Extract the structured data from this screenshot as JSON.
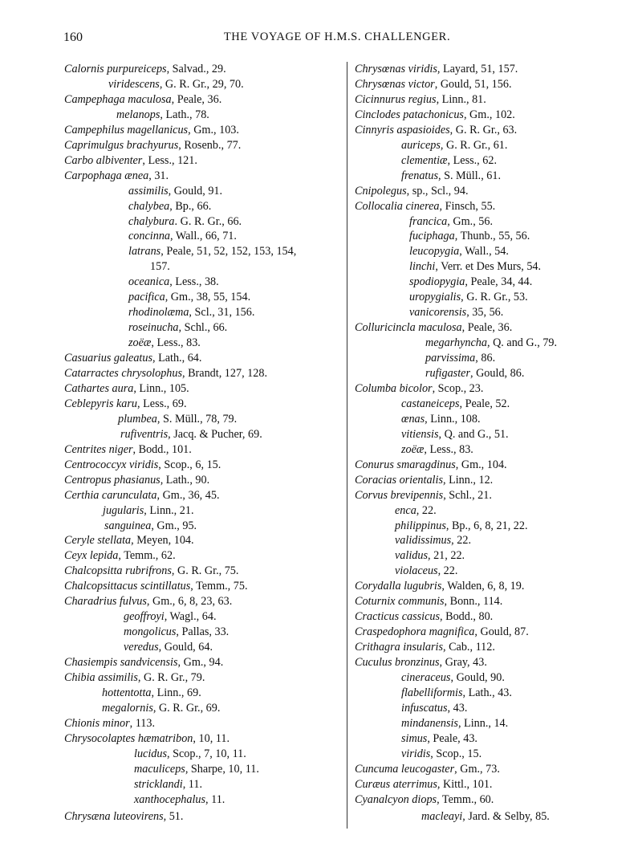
{
  "header": {
    "page_number": "160",
    "running_title": "THE VOYAGE OF H.M.S. CHALLENGER."
  },
  "left_column": [
    {
      "name": "Calornis purpureiceps",
      "ref": ", Salvad., 29."
    },
    {
      "name": "viridescens",
      "ref": ", G. R. Gr., 29, 70."
    },
    {
      "name": "Campephaga maculosa",
      "ref": ", Peale, 36."
    },
    {
      "name": "melanops",
      "ref": ", Lath., 78."
    },
    {
      "name": "Campephilus magellanicus",
      "ref": ", Gm., 103."
    },
    {
      "name": "Caprimulgus brachyurus",
      "ref": ", Rosenb., 77."
    },
    {
      "name": "Carbo albiventer",
      "ref": ", Less., 121."
    },
    {
      "name": "Carpophaga ænea",
      "ref": ", 31."
    },
    {
      "name": "assimilis",
      "ref": ", Gould, 91."
    },
    {
      "name": "chalybea",
      "ref": ", Bp., 66."
    },
    {
      "name": "chalybura",
      "ref": ". G. R. Gr., 66."
    },
    {
      "name": "concinna",
      "ref": ", Wall., 66, 71."
    },
    {
      "name": "latrans",
      "ref": ", Peale, 51, 52, 152, 153, 154,"
    },
    {
      "name": "",
      "ref": "157."
    },
    {
      "name": "oceanica",
      "ref": ", Less., 38."
    },
    {
      "name": "pacifica",
      "ref": ", Gm., 38, 55, 154."
    },
    {
      "name": "rhodinolæma",
      "ref": ", Scl., 31, 156."
    },
    {
      "name": "roseinucha",
      "ref": ", Schl., 66."
    },
    {
      "name": "zoëæ",
      "ref": ", Less., 83."
    },
    {
      "name": "Casuarius galeatus",
      "ref": ", Lath., 64."
    },
    {
      "name": "Catarractes chrysolophus",
      "ref": ", Brandt, 127, 128."
    },
    {
      "name": "Cathartes aura",
      "ref": ", Linn., 105."
    },
    {
      "name": "Ceblepyris karu",
      "ref": ", Less., 69."
    },
    {
      "name": "plumbea",
      "ref": ", S. Müll., 78, 79."
    },
    {
      "name": "rufiventris",
      "ref": ", Jacq. & Pucher, 69."
    },
    {
      "name": "Centrites niger",
      "ref": ", Bodd., 101."
    },
    {
      "name": "Centrococcyx viridis",
      "ref": ", Scop., 6, 15."
    },
    {
      "name": "Centropus phasianus",
      "ref": ", Lath., 90."
    },
    {
      "name": "Certhia caruncula​ta",
      "ref": ", Gm., 36, 45."
    },
    {
      "name": "jugularis",
      "ref": ", Linn., 21."
    },
    {
      "name": "sanguinea",
      "ref": ", Gm., 95."
    },
    {
      "name": "Ceryle stellata",
      "ref": ", Meyen, 104."
    },
    {
      "name": "Ceyx lepida",
      "ref": ", Temm., 62."
    },
    {
      "name": "Chalcopsitta rubrifrons",
      "ref": ", G. R. Gr., 75."
    },
    {
      "name": "Chalcopsittacus scintillatus",
      "ref": ", Temm., 75."
    },
    {
      "name": "Charadrius fulvus",
      "ref": ", Gm., 6, 8, 23, 63."
    },
    {
      "name": "geoffroyi",
      "ref": ", Wagl., 64."
    },
    {
      "name": "mongolicus",
      "ref": ", Pallas, 33."
    },
    {
      "name": "veredus",
      "ref": ", Gould, 64."
    },
    {
      "name": "Chasiempis sandvicensis",
      "ref": ", Gm., 94."
    },
    {
      "name": "Chibia assimilis",
      "ref": ", G. R. Gr., 79."
    },
    {
      "name": "hottentotta",
      "ref": ", Linn., 69."
    },
    {
      "name": "megalornis",
      "ref": ", G. R. Gr., 69."
    },
    {
      "name": "Chionis minor",
      "ref": ", 113."
    },
    {
      "name": "Chrysocolaptes hæmatribon",
      "ref": ", 10, 11."
    },
    {
      "name": "lucidus",
      "ref": ", Scop., 7, 10, 11."
    },
    {
      "name": "maculiceps",
      "ref": ", Sharpe, 10, 11."
    },
    {
      "name": "stricklandi",
      "ref": ", 11."
    },
    {
      "name": "xanthocephalus",
      "ref": ", 11."
    },
    {
      "name": "Chrysæna luteovirens",
      "ref": ", 51."
    }
  ],
  "right_column": [
    {
      "name": "Chrysœnas viridis",
      "ref": ", Layard, 51, 157."
    },
    {
      "name": "Chrysœnas victor",
      "ref": ", Gould, 51, 156."
    },
    {
      "name": "Cicinnurus regius",
      "ref": ", Linn., 81."
    },
    {
      "name": "Cinclodes patachonicus",
      "ref": ", Gm., 102."
    },
    {
      "name": "Cinnyris aspasioides",
      "ref": ", G. R. Gr., 63."
    },
    {
      "name": "auriceps",
      "ref": ", G. R. Gr., 61."
    },
    {
      "name": "clementiæ",
      "ref": ", Less., 62."
    },
    {
      "name": "frenatus",
      "ref": ", S. Müll., 61."
    },
    {
      "name": "Cnipolegus",
      "ref": ", sp., Scl., 94."
    },
    {
      "name": "Collocalia cinerea",
      "ref": ", Finsch, 55."
    },
    {
      "name": "francica",
      "ref": ", Gm., 56."
    },
    {
      "name": "fuciphaga",
      "ref": ", Thunb., 55, 56."
    },
    {
      "name": "leucopygia",
      "ref": ", Wall., 54."
    },
    {
      "name": "linchi",
      "ref": ", Verr. et Des Murs, 54."
    },
    {
      "name": "spodiopygia",
      "ref": ", Peale, 34, 44."
    },
    {
      "name": "uropygialis",
      "ref": ", G. R. Gr., 53."
    },
    {
      "name": "vanicorensis",
      "ref": ", 35, 56."
    },
    {
      "name": "Colluricincla maculosa",
      "ref": ", Peale, 36."
    },
    {
      "name": "megarhyncha",
      "ref": ", Q. and G., 79."
    },
    {
      "name": "parvissima",
      "ref": ", 86."
    },
    {
      "name": "rufigaster",
      "ref": ", Gould, 86."
    },
    {
      "name": "Columba bicolor",
      "ref": ", Scop., 23."
    },
    {
      "name": "castaneiceps",
      "ref": ", Peale, 52."
    },
    {
      "name": "œnas",
      "ref": ", Linn., 108."
    },
    {
      "name": "vitiensis",
      "ref": ", Q. and G., 51."
    },
    {
      "name": "zoëæ",
      "ref": ", Less., 83."
    },
    {
      "name": "Conurus smaragdinus",
      "ref": ", Gm., 104."
    },
    {
      "name": "Coracias orientalis",
      "ref": ", Linn., 12."
    },
    {
      "name": "Corvus brevipennis",
      "ref": ", Schl., 21."
    },
    {
      "name": "enca",
      "ref": ", 22."
    },
    {
      "name": "philippinus",
      "ref": ", Bp., 6, 8, 21, 22."
    },
    {
      "name": "validissimus",
      "ref": ", 22."
    },
    {
      "name": "validus",
      "ref": ", 21, 22."
    },
    {
      "name": "violaceus",
      "ref": ", 22."
    },
    {
      "name": "Corydalla lugubris",
      "ref": ", Walden, 6, 8, 19."
    },
    {
      "name": "Coturnix communis",
      "ref": ", Bonn., 114."
    },
    {
      "name": "Cracticus cassicus",
      "ref": ", Bodd., 80."
    },
    {
      "name": "Craspedophora magnifica",
      "ref": ", Gould, 87."
    },
    {
      "name": "Crithagra insularis",
      "ref": ", Cab., 112."
    },
    {
      "name": "Cuculus bronzinus",
      "ref": ", Gray, 43."
    },
    {
      "name": "cineraceus",
      "ref": ", Gould, 90."
    },
    {
      "name": "flabelliformis",
      "ref": ", Lath., 43."
    },
    {
      "name": "infuscatus",
      "ref": ", 43."
    },
    {
      "name": "mindanensis",
      "ref": ", Linn., 14."
    },
    {
      "name": "simus",
      "ref": ", Peale, 43."
    },
    {
      "name": "viridis",
      "ref": ", Scop., 15."
    },
    {
      "name": "Cuncuma leucogaster",
      "ref": ", Gm., 73."
    },
    {
      "name": "Curæus aterrimus",
      "ref": ", Kittl., 101."
    },
    {
      "name": "Cyanalcyon diops",
      "ref": ", Temm., 60."
    },
    {
      "name": "macleayi",
      "ref": ", Jard. & Selby, 85."
    }
  ]
}
